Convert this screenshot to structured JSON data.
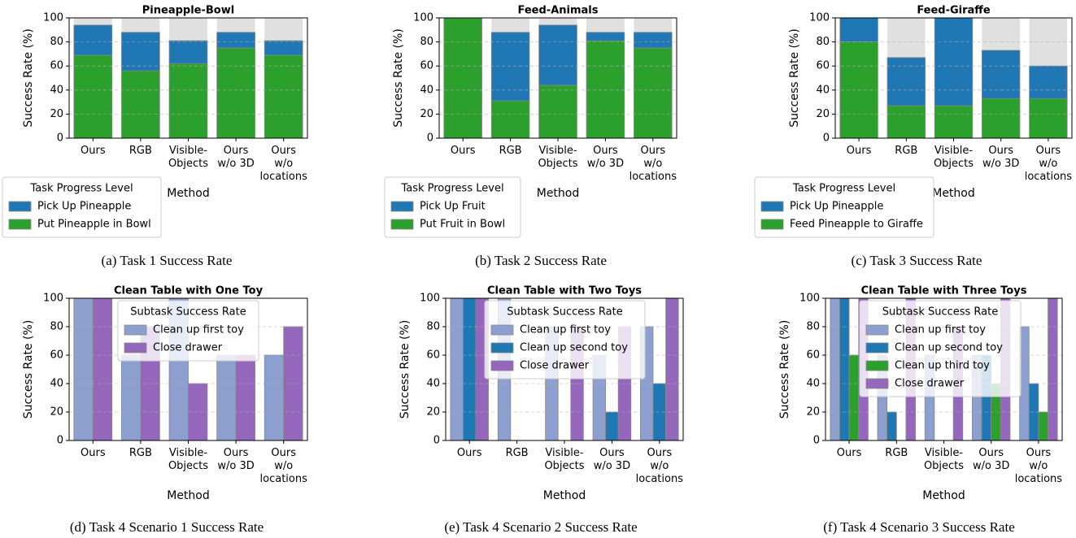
{
  "chart_data": [
    {
      "type": "stacked_bar",
      "title": "Pineapple-Bowl",
      "caption": "(a) Task 1 Success Rate",
      "ylabel": "Success Rate (%)",
      "xlabel": "Method",
      "categories": [
        [
          "Ours"
        ],
        [
          "RGB"
        ],
        [
          "Visible-",
          "Objects"
        ],
        [
          "Ours",
          "w/o 3D"
        ],
        [
          "Ours",
          "w/o",
          "locations"
        ]
      ],
      "series": [
        {
          "name": "Pick Up Pineapple",
          "color": "#1f77b4",
          "values": [
            25,
            32,
            19,
            13,
            12
          ]
        },
        {
          "name": "Put Pineapple in Bowl",
          "color": "#2ca02c",
          "values": [
            69,
            56,
            62,
            75,
            69
          ]
        }
      ],
      "legend_title": "Task Progress Level",
      "legend": "below left",
      "ylim": [
        0,
        100
      ],
      "yticks": [
        0,
        20,
        40,
        60,
        80,
        100
      ],
      "grid": true
    },
    {
      "type": "stacked_bar",
      "title": "Feed-Animals",
      "caption": "(b) Task 2 Success Rate",
      "ylabel": "Success Rate (%)",
      "xlabel": "Method",
      "categories": [
        [
          "Ours"
        ],
        [
          "RGB"
        ],
        [
          "Visible-",
          "Objects"
        ],
        [
          "Ours",
          "w/o 3D"
        ],
        [
          "Ours",
          "w/o",
          "locations"
        ]
      ],
      "series": [
        {
          "name": "Pick Up Fruit",
          "color": "#1f77b4",
          "values": [
            0,
            57,
            50,
            7,
            13
          ]
        },
        {
          "name": "Put Fruit in Bowl",
          "color": "#2ca02c",
          "values": [
            100,
            31,
            44,
            81,
            75
          ]
        }
      ],
      "legend_title": "Task Progress Level",
      "legend": "below left",
      "ylim": [
        0,
        100
      ],
      "yticks": [
        0,
        20,
        40,
        60,
        80,
        100
      ],
      "grid": true
    },
    {
      "type": "stacked_bar",
      "title": "Feed-Giraffe",
      "caption": "(c) Task 3 Success Rate",
      "ylabel": "Success Rate (%)",
      "xlabel": "Method",
      "categories": [
        [
          "Ours"
        ],
        [
          "RGB"
        ],
        [
          "Visible-",
          "Objects"
        ],
        [
          "Ours",
          "w/o 3D"
        ],
        [
          "Ours",
          "w/o",
          "locations"
        ]
      ],
      "series": [
        {
          "name": "Pick Up Pineapple",
          "color": "#1f77b4",
          "values": [
            20,
            40,
            73,
            40,
            27
          ]
        },
        {
          "name": "Feed Pineapple to Giraffe",
          "color": "#2ca02c",
          "values": [
            80,
            27,
            27,
            33,
            33
          ]
        }
      ],
      "legend_title": "Task Progress Level",
      "legend": "below left",
      "ylim": [
        0,
        100
      ],
      "yticks": [
        0,
        20,
        40,
        60,
        80,
        100
      ],
      "grid": true
    },
    {
      "type": "grouped_bar",
      "title": "Clean Table with One Toy",
      "caption": "(d) Task 4 Scenario 1 Success Rate",
      "ylabel": "Success Rate (%)",
      "xlabel": "Method",
      "categories": [
        [
          "Ours"
        ],
        [
          "RGB"
        ],
        [
          "Visible-",
          "Objects"
        ],
        [
          "Ours",
          "w/o 3D"
        ],
        [
          "Ours",
          "w/o",
          "locations"
        ]
      ],
      "series": [
        {
          "name": "Clean up first toy",
          "color": "#8c9fcf",
          "values": [
            100,
            60,
            100,
            60,
            60
          ]
        },
        {
          "name": "Close drawer",
          "color": "#9467bd",
          "values": [
            100,
            80,
            40,
            60,
            80
          ]
        }
      ],
      "legend_title": "Subtask Success Rate",
      "legend": "upper left",
      "ylim": [
        0,
        100
      ],
      "yticks": [
        0,
        20,
        40,
        60,
        80,
        100
      ],
      "grid": true
    },
    {
      "type": "grouped_bar",
      "title": "Clean Table with Two Toys",
      "caption": "(e) Task 4 Scenario 2 Success Rate",
      "ylabel": "Success Rate (%)",
      "xlabel": "Method",
      "categories": [
        [
          "Ours"
        ],
        [
          "RGB"
        ],
        [
          "Visible-",
          "Objects"
        ],
        [
          "Ours",
          "w/o 3D"
        ],
        [
          "Ours",
          "w/o",
          "locations"
        ]
      ],
      "series": [
        {
          "name": "Clean up first toy",
          "color": "#8c9fcf",
          "values": [
            100,
            100,
            80,
            60,
            80
          ]
        },
        {
          "name": "Clean up second toy",
          "color": "#1f77b4",
          "values": [
            100,
            0,
            0,
            20,
            40
          ]
        },
        {
          "name": "Close drawer",
          "color": "#9467bd",
          "values": [
            100,
            0,
            80,
            80,
            100
          ]
        }
      ],
      "legend_title": "Subtask Success Rate",
      "legend": "upper left",
      "ylim": [
        0,
        100
      ],
      "yticks": [
        0,
        20,
        40,
        60,
        80,
        100
      ],
      "grid": true
    },
    {
      "type": "grouped_bar",
      "title": "Clean Table with Three Toys",
      "caption": "(f) Task 4 Scenario 3 Success Rate",
      "ylabel": "Success Rate (%)",
      "xlabel": "Method",
      "categories": [
        [
          "Ours"
        ],
        [
          "RGB"
        ],
        [
          "Visible-",
          "Objects"
        ],
        [
          "Ours",
          "w/o 3D"
        ],
        [
          "Ours",
          "w/o",
          "locations"
        ]
      ],
      "series": [
        {
          "name": "Clean up first toy",
          "color": "#8c9fcf",
          "values": [
            100,
            60,
            60,
            60,
            80
          ]
        },
        {
          "name": "Clean up second toy",
          "color": "#1f77b4",
          "values": [
            100,
            20,
            0,
            60,
            40
          ]
        },
        {
          "name": "Clean up third toy",
          "color": "#2ca02c",
          "values": [
            60,
            0,
            0,
            40,
            20
          ]
        },
        {
          "name": "Close drawer",
          "color": "#9467bd",
          "values": [
            100,
            100,
            80,
            100,
            100
          ]
        }
      ],
      "legend_title": "Subtask Success Rate",
      "legend": "upper left",
      "ylim": [
        0,
        100
      ],
      "yticks": [
        0,
        20,
        40,
        60,
        80,
        100
      ],
      "grid": true
    }
  ]
}
